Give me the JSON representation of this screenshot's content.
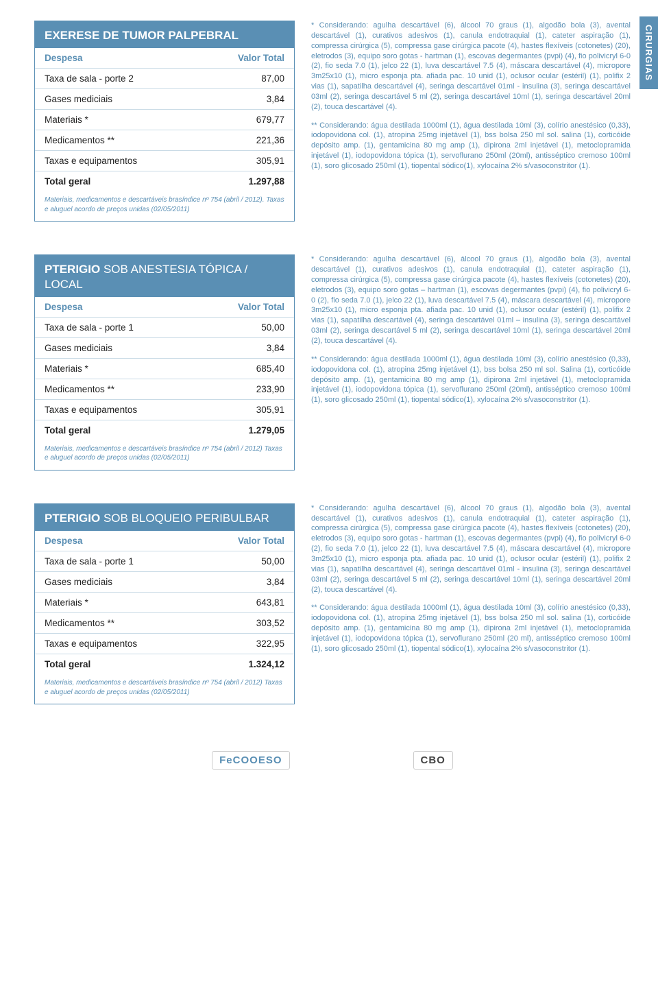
{
  "section_tab": "CIRURGIAS",
  "colors": {
    "accent": "#5a8fb4",
    "text_body": "#222222",
    "note_text": "#5a8fb4",
    "rule": "#c9dbe6"
  },
  "blocks": [
    {
      "title_main": "EXERESE DE TUMOR PALPEBRAL",
      "title_sub": "",
      "header_left": "Despesa",
      "header_right": "Valor Total",
      "rows": [
        {
          "label": "Taxa de sala  - porte 2",
          "value": "87,00"
        },
        {
          "label": "Gases mediciais",
          "value": "3,84"
        },
        {
          "label": "Materiais *",
          "value": "679,77"
        },
        {
          "label": "Medicamentos **",
          "value": "221,36"
        },
        {
          "label": "Taxas e equipamentos",
          "value": "305,91"
        }
      ],
      "total": {
        "label": "Total geral",
        "value": "1.297,88"
      },
      "footnote": "Materiais, medicamentos e descartáveis brasíndice nº 754 (abril / 2012). Taxas e aluguel acordo de preços unidas (02/05/2011)",
      "note1": "* Considerando: agulha descartável (6), álcool 70 graus (1), algodão bola (3), avental descartável (1), curativos adesivos (1), canula endotraquial (1), cateter aspiração (1), compressa cirúrgica (5), compressa gase cirúrgica pacote (4), hastes flexíveis (cotonetes) (20), eletrodos (3), equipo soro gotas - hartman (1), escovas degermantes (pvpi) (4), fio polivicryl 6-0 (2), fio seda 7.0 (1), jelco 22 (1), luva descartável 7.5 (4), máscara descartável (4), micropore 3m25x10 (1), micro esponja pta. afiada pac. 10 unid (1), oclusor ocular (estéril) (1), polifix 2 vias (1), sapatilha descartável (4), seringa descartável 01ml - insulina (3), seringa descartável 03ml (2), seringa descartável 5 ml (2), seringa descartável 10ml (1),   seringa descartável 20ml (2), touca descartável (4).",
      "note2": "** Considerando: água destilada 1000ml (1), água destilada 10ml (3), colírio anestésico (0,33), iodopovidona col. (1), atropina 25mg injetável (1), bss bolsa 250 ml sol. salina (1), corticóide depósito amp. (1), gentamicina 80 mg amp (1), dipirona 2ml injetável (1), metoclopramida injetável (1), iodopovidona tópica (1), servoflurano 250ml (20ml), antisséptico cremoso 100ml (1), soro glicosado 250ml (1), tiopental sódico(1), xylocaína 2% s/vasoconstritor (1)."
    },
    {
      "title_main": "PTERIGIO ",
      "title_sub": "SOB ANESTESIA TÓPICA / LOCAL",
      "header_left": "Despesa",
      "header_right": "Valor Total",
      "rows": [
        {
          "label": "Taxa de sala  - porte 1",
          "value": "50,00"
        },
        {
          "label": "Gases mediciais",
          "value": "3,84"
        },
        {
          "label": "Materiais *",
          "value": "685,40"
        },
        {
          "label": "Medicamentos **",
          "value": "233,90"
        },
        {
          "label": "Taxas e equipamentos",
          "value": "305,91"
        }
      ],
      "total": {
        "label": "Total geral",
        "value": "1.279,05"
      },
      "footnote": "Materiais, medicamentos e descartáveis brasíndice nº 754 (abril / 2012) Taxas e aluguel acordo de preços unidas (02/05/2011)",
      "note1": "* Considerando: agulha descartável (6), álcool 70 graus (1), algodão bola (3), avental descartável (1), curativos adesivos (1), canula endotraquial (1), cateter aspiração (1), compressa cirúrgica (5), compressa gase cirúrgica pacote (4), hastes flexíveis (cotonetes) (20), eletrodos (3), equipo soro gotas – hartman (1), escovas degermantes (pvpi) (4), fio polivicryl 6-0 (2), fio seda 7.0 (1), jelco 22 (1), luva descartável 7.5 (4), máscara descartável (4), micropore 3m25x10 (1), micro esponja pta. afiada pac. 10 unid (1), oclusor ocular (estéril) (1), polifix 2 vias (1), sapatilha descartável (4), seringa descartável 01ml – insulina (3), seringa descartável 03ml (2), seringa descartável 5 ml (2), seringa descartável 10ml (1), seringa descartável 20ml (2), touca descartável (4).",
      "note2": "** Considerando: água destilada 1000ml (1), água destilada 10ml (3), colírio anestésico (0,33), iodopovidona col. (1), atropina 25mg injetável (1), bss bolsa 250 ml sol. Salina (1), corticóide depósito amp. (1), gentamicina 80 mg amp (1), dipirona 2ml injetável (1), metoclopramida injetável (1), iodopovidona tópica (1), servoflurano 250ml (20ml), antisséptico cremoso 100ml (1), soro glicosado 250ml (1), tiopental sódico(1), xylocaína 2% s/vasoconstritor (1)."
    },
    {
      "title_main": "PTERIGIO ",
      "title_sub": "SOB BLOQUEIO PERIBULBAR",
      "header_left": "Despesa",
      "header_right": "Valor Total",
      "rows": [
        {
          "label": "Taxa de sala  - porte 1",
          "value": "50,00"
        },
        {
          "label": "Gases mediciais",
          "value": "3,84"
        },
        {
          "label": "Materiais *",
          "value": "643,81"
        },
        {
          "label": "Medicamentos **",
          "value": "303,52"
        },
        {
          "label": "Taxas e equipamentos",
          "value": "322,95"
        }
      ],
      "total": {
        "label": "Total geral",
        "value": "1.324,12"
      },
      "footnote": "Materiais, medicamentos e descartáveis brasíndice nº 754 (abril / 2012) Taxas e aluguel acordo de preços unidas (02/05/2011)",
      "note1": "* Considerando: agulha descartável (6), álcool 70 graus (1), algodão bola (3), avental descartável (1), curativos adesivos (1), canula endotraquial (1), cateter aspiração (1), compressa cirúrgica (5), compressa gase cirúrgica pacote (4), hastes flexíveis (cotonetes) (20), eletrodos (3), equipo soro gotas - hartman (1), escovas degermantes (pvpi) (4), fio polivicryl 6-0 (2), fio seda 7.0 (1), jelco 22 (1), luva descartável 7.5 (4), máscara descartável (4), micropore 3m25x10 (1), micro esponja pta. afiada pac. 10 unid (1), oclusor ocular (estéril) (1), polifix 2 vias (1), sapatilha descartável (4), seringa descartável 01ml - insulina (3), seringa descartável 03ml (2), seringa descartável 5 ml (2), seringa descartável 10ml (1), seringa descartável 20ml (2), touca descartável (4).",
      "note2": "** Considerando: água destilada 1000ml (1), água destilada 10ml (3), colírio anestésico (0,33), iodopovidona col. (1), atropina 25mg injetável (1), bss bolsa 250 ml sol. salina (1), corticóide depósito amp. (1), gentamicina 80 mg amp (1), dipirona 2ml injetável (1), metoclopramida injetável (1), iodopovidona tópica (1), servoflurano 250ml (20 ml), antisséptico cremoso 100ml (1), soro glicosado 250ml (1), tiopental sódico(1), xylocaína 2% s/vasoconstritor (1)."
    }
  ],
  "footer": {
    "logo1": "FeCOOESO",
    "logo2": "CBO"
  }
}
